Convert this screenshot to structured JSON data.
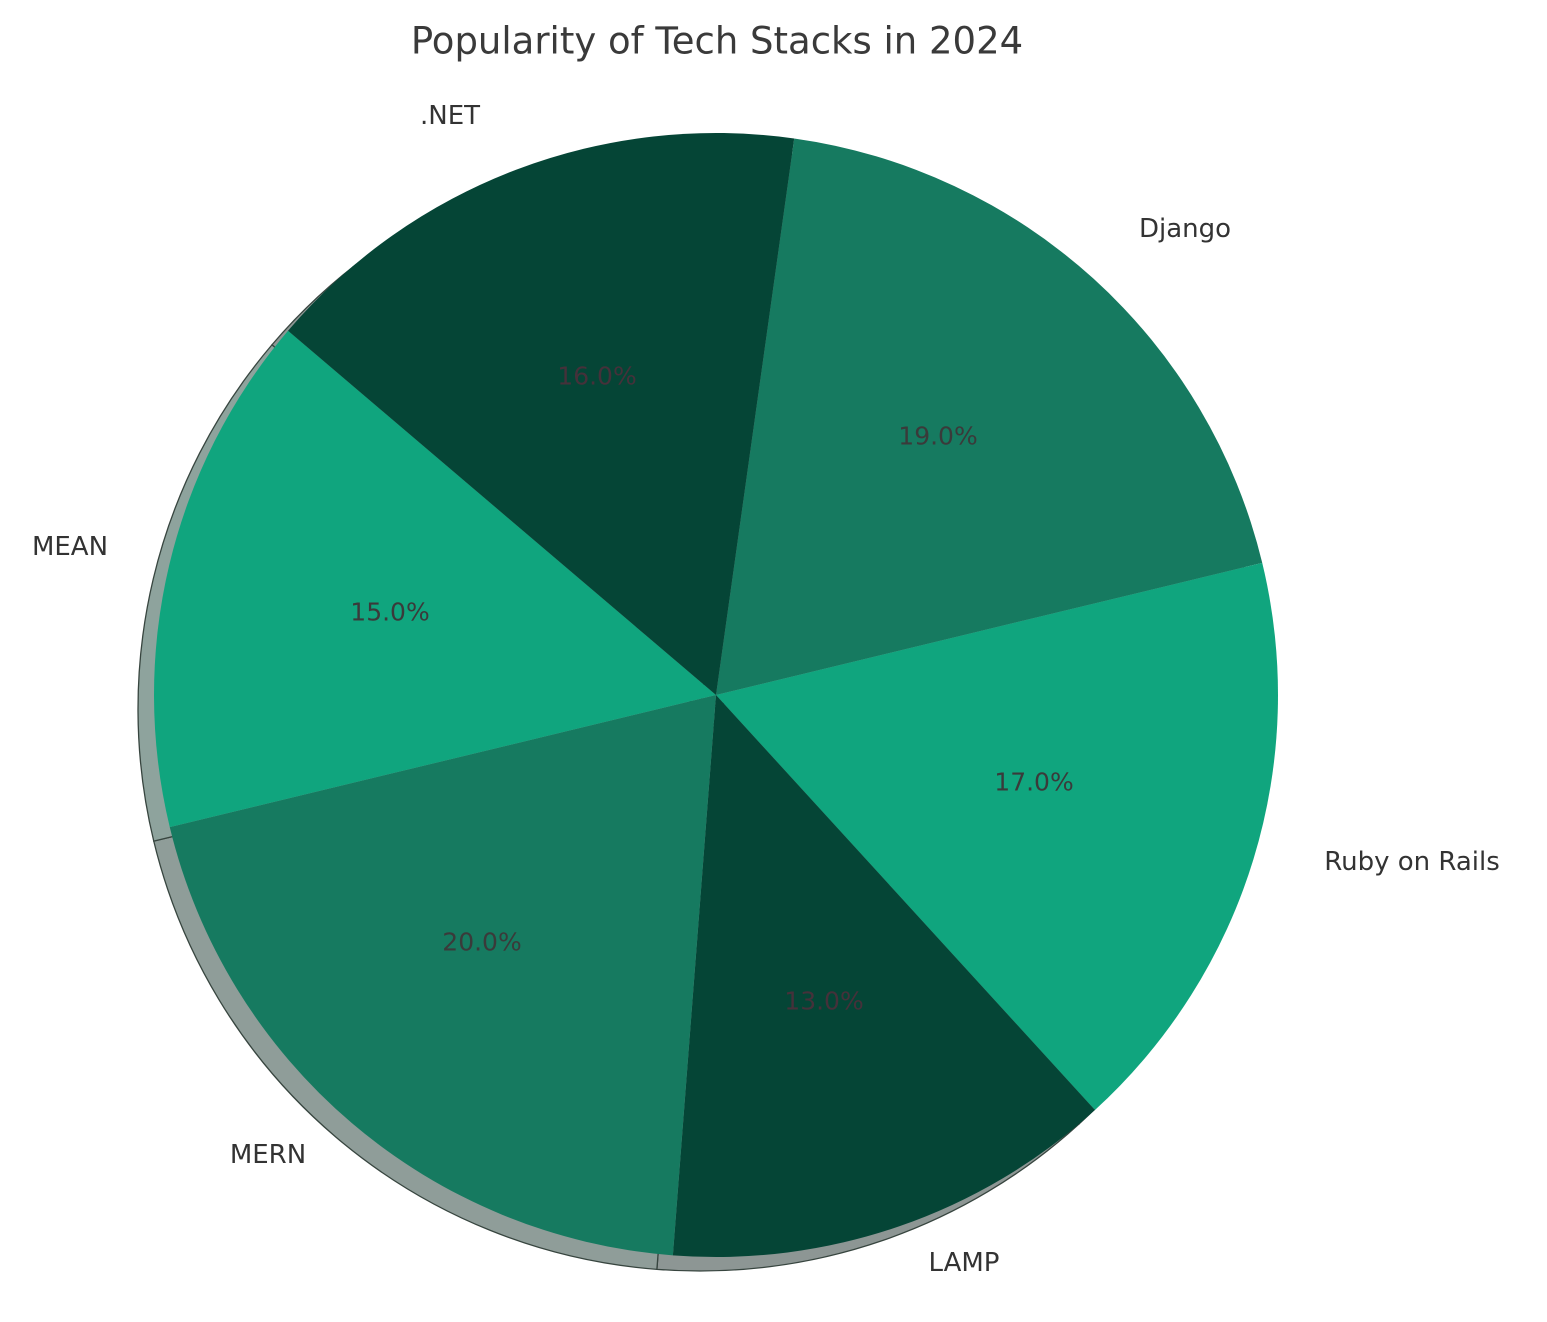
{
  "chart_data": {
    "type": "pie",
    "title": "Popularity of Tech Stacks in 2024",
    "categories": [
      "Django",
      "Ruby on Rails",
      "LAMP",
      "MERN",
      "MEAN",
      ".NET"
    ],
    "values": [
      19,
      17,
      13,
      20,
      15,
      16
    ],
    "pct_labels": [
      "19.0%",
      "17.0%",
      "13.0%",
      "20.0%",
      "15.0%",
      "16.0%"
    ],
    "colors": [
      "#167a60",
      "#10a57e",
      "#054536",
      "#167a60",
      "#10a57e",
      "#054536"
    ],
    "pct_label_colors": [
      "#3a3a3a",
      "#3a3a3a",
      "#45313a",
      "#3a3a3a",
      "#3a3a3a",
      "#45313a"
    ],
    "label_color": "#333333",
    "title_color": "#3a3a3a",
    "background": "#ffffff",
    "start_angle_deg": 82,
    "direction": "clockwise",
    "shadow": true,
    "legend": "none"
  }
}
